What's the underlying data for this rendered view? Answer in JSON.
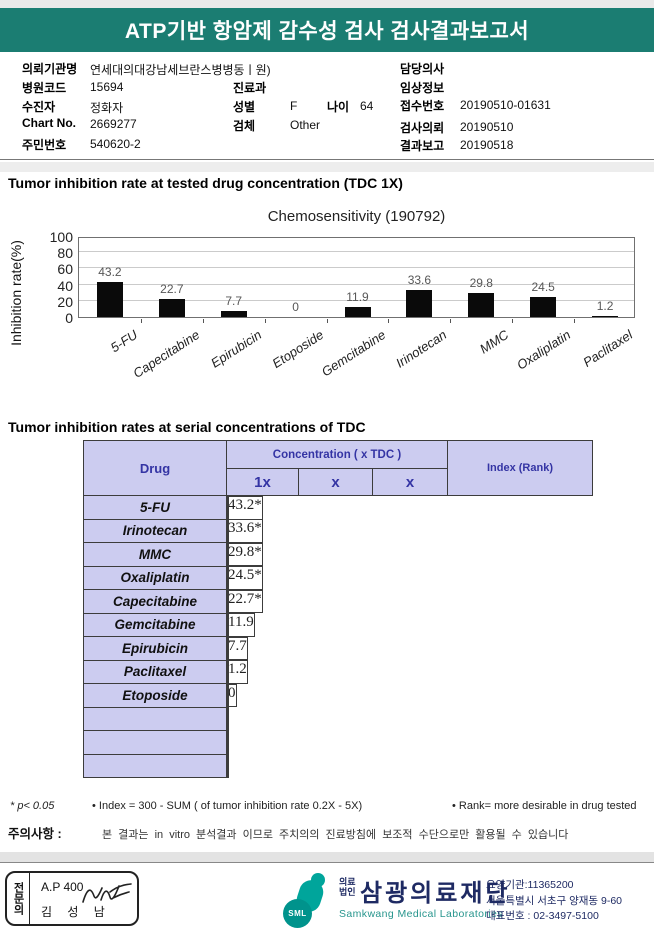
{
  "colors": {
    "banner_teal": "#1b7d72",
    "table_header_bg": "#ccccf0",
    "table_header_text": "#3434a4",
    "logo_teal": "#00a59b",
    "logo_navy": "#1e2a63",
    "bar_color": "#0a0a0a"
  },
  "banner": {
    "title": "ATP기반 항암제 감수성 검사 검사결과보고서"
  },
  "patient_info": {
    "requesting_org": {
      "label": "의뢰기관명",
      "value": "연세대의대강남세브란스병병동ㅣ원)"
    },
    "hospital_code": {
      "label": "병원코드",
      "value": "15694"
    },
    "patient": {
      "label": "수진자",
      "value": "정화자"
    },
    "chart_no": {
      "label": "Chart No.",
      "value": "2669277"
    },
    "resident_no": {
      "label": "주민번호",
      "value": "540620-2"
    },
    "department": {
      "label": "진료과",
      "value": ""
    },
    "sex": {
      "label": "성별",
      "value": "F"
    },
    "age": {
      "label": "나이",
      "value": "64"
    },
    "specimen": {
      "label": "검체",
      "value": "Other"
    },
    "doctor": {
      "label": "담당의사",
      "value": ""
    },
    "clinical_info": {
      "label": "임상정보",
      "value": ""
    },
    "receipt_no": {
      "label": "접수번호",
      "value": "20190510-01631"
    },
    "request_date": {
      "label": "검사의뢰",
      "value": "20190510"
    },
    "report_date": {
      "label": "결과보고",
      "value": "20190518"
    }
  },
  "sections": {
    "chart_section_title": "Tumor inhibition rate at tested drug concentration (TDC 1X)",
    "table_section_title": "Tumor inhibition rates at serial concentrations of TDC"
  },
  "chart_data": {
    "type": "bar",
    "title": "Chemosensitivity (190792)",
    "ylabel": "Inhibition rate(%)",
    "categories": [
      "5-FU",
      "Capecitabine",
      "Epirubicin",
      "Etoposide",
      "Gemcitabine",
      "Irinotecan",
      "MMC",
      "Oxaliplatin",
      "Paclitaxel"
    ],
    "values": [
      43.2,
      22.7,
      7.7,
      0,
      11.9,
      33.6,
      29.8,
      24.5,
      1.2
    ],
    "ylim": [
      0,
      100
    ],
    "yticks": [
      0,
      20,
      40,
      60,
      80,
      100
    ],
    "grid": true,
    "legend": "none",
    "bar_color": "#0a0a0a"
  },
  "table": {
    "headers": {
      "drug": "Drug",
      "concentration": "Concentration ( x TDC )",
      "index": "Index (Rank)",
      "sub": [
        "1x",
        "x",
        "x"
      ]
    },
    "rows": [
      {
        "drug": "5-FU",
        "c1": "43.2*",
        "c2": "",
        "c3": "",
        "index": ""
      },
      {
        "drug": "Irinotecan",
        "c1": "33.6*",
        "c2": "",
        "c3": "",
        "index": ""
      },
      {
        "drug": "MMC",
        "c1": "29.8*",
        "c2": "",
        "c3": "",
        "index": ""
      },
      {
        "drug": "Oxaliplatin",
        "c1": "24.5*",
        "c2": "",
        "c3": "",
        "index": ""
      },
      {
        "drug": "Capecitabine",
        "c1": "22.7*",
        "c2": "",
        "c3": "",
        "index": ""
      },
      {
        "drug": "Gemcitabine",
        "c1": "11.9",
        "c2": "",
        "c3": "",
        "index": ""
      },
      {
        "drug": "Epirubicin",
        "c1": "7.7",
        "c2": "",
        "c3": "",
        "index": ""
      },
      {
        "drug": "Paclitaxel",
        "c1": "1.2",
        "c2": "",
        "c3": "",
        "index": ""
      },
      {
        "drug": "Etoposide",
        "c1": "0",
        "c2": "",
        "c3": "",
        "index": ""
      },
      {
        "drug": "",
        "c1": "",
        "c2": "",
        "c3": "",
        "index": ""
      },
      {
        "drug": "",
        "c1": "",
        "c2": "",
        "c3": "",
        "index": ""
      },
      {
        "drug": "",
        "c1": "",
        "c2": "",
        "c3": "",
        "index": ""
      }
    ]
  },
  "footnotes": {
    "p_note": "* p< 0.05",
    "index_note": "• Index = 300 - SUM ( of tumor inhibition rate 0.2X  -  5X)",
    "rank_note": "• Rank= more desirable in drug tested",
    "caution_label": "주의사항 :",
    "caution_text": "본 결과는 in vitro 분석결과 이므로 주치의의 진료방침에 보조적 수단으로만 활용될 수 있습니다"
  },
  "footer": {
    "specialist_box": {
      "role": "전문의",
      "code": "A.P 400",
      "name": "김 성 남"
    },
    "org": {
      "prefix_top": "의료",
      "prefix_bottom": "법인",
      "name": "삼광의료재단",
      "name_en": "Samkwang Medical Laboratories",
      "mark_label": "SML"
    },
    "contact": {
      "line1": "요양기관:11365200",
      "line2": "서울특별시 서초구 양재동 9-60",
      "line3": "대표번호 : 02-3497-5100"
    }
  }
}
